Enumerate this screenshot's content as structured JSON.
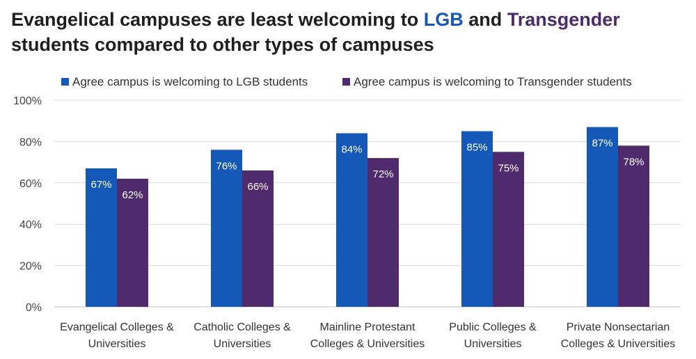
{
  "title": {
    "part1": "Evangelical campuses are least welcoming to ",
    "lgb": "LGB",
    "mid": " and ",
    "transgender": "Transgender",
    "part2": "students compared to other types of campuses"
  },
  "colors": {
    "lgb": "#1559b8",
    "transgender": "#4f2b6e",
    "title_lgb": "#1559b8",
    "title_transgender": "#4b2a6b",
    "grid": "#d9d9d9"
  },
  "chart_data": {
    "type": "bar",
    "categories": [
      [
        "Evangelical Colleges &",
        "Universities"
      ],
      [
        "Catholic Colleges &",
        "Universities"
      ],
      [
        "Mainline Protestant",
        "Colleges & Universities"
      ],
      [
        "Public Colleges &",
        "Universities"
      ],
      [
        "Private Nonsectarian",
        "Colleges & Universities"
      ]
    ],
    "series": [
      {
        "name": "Agree campus is welcoming to LGB students",
        "values": [
          67,
          76,
          84,
          85,
          87
        ],
        "labels": [
          "67%",
          "76%",
          "84%",
          "85%",
          "87%"
        ],
        "color": "#1559b8"
      },
      {
        "name": "Agree campus is welcoming to Transgender students",
        "values": [
          62,
          66,
          72,
          75,
          78
        ],
        "labels": [
          "62%",
          "66%",
          "72%",
          "75%",
          "78%"
        ],
        "color": "#4f2b6e"
      }
    ],
    "yticks": [
      "0%",
      "20%",
      "40%",
      "60%",
      "80%",
      "100%"
    ],
    "ylim": [
      0,
      100
    ],
    "grid": true,
    "legend": "top"
  }
}
